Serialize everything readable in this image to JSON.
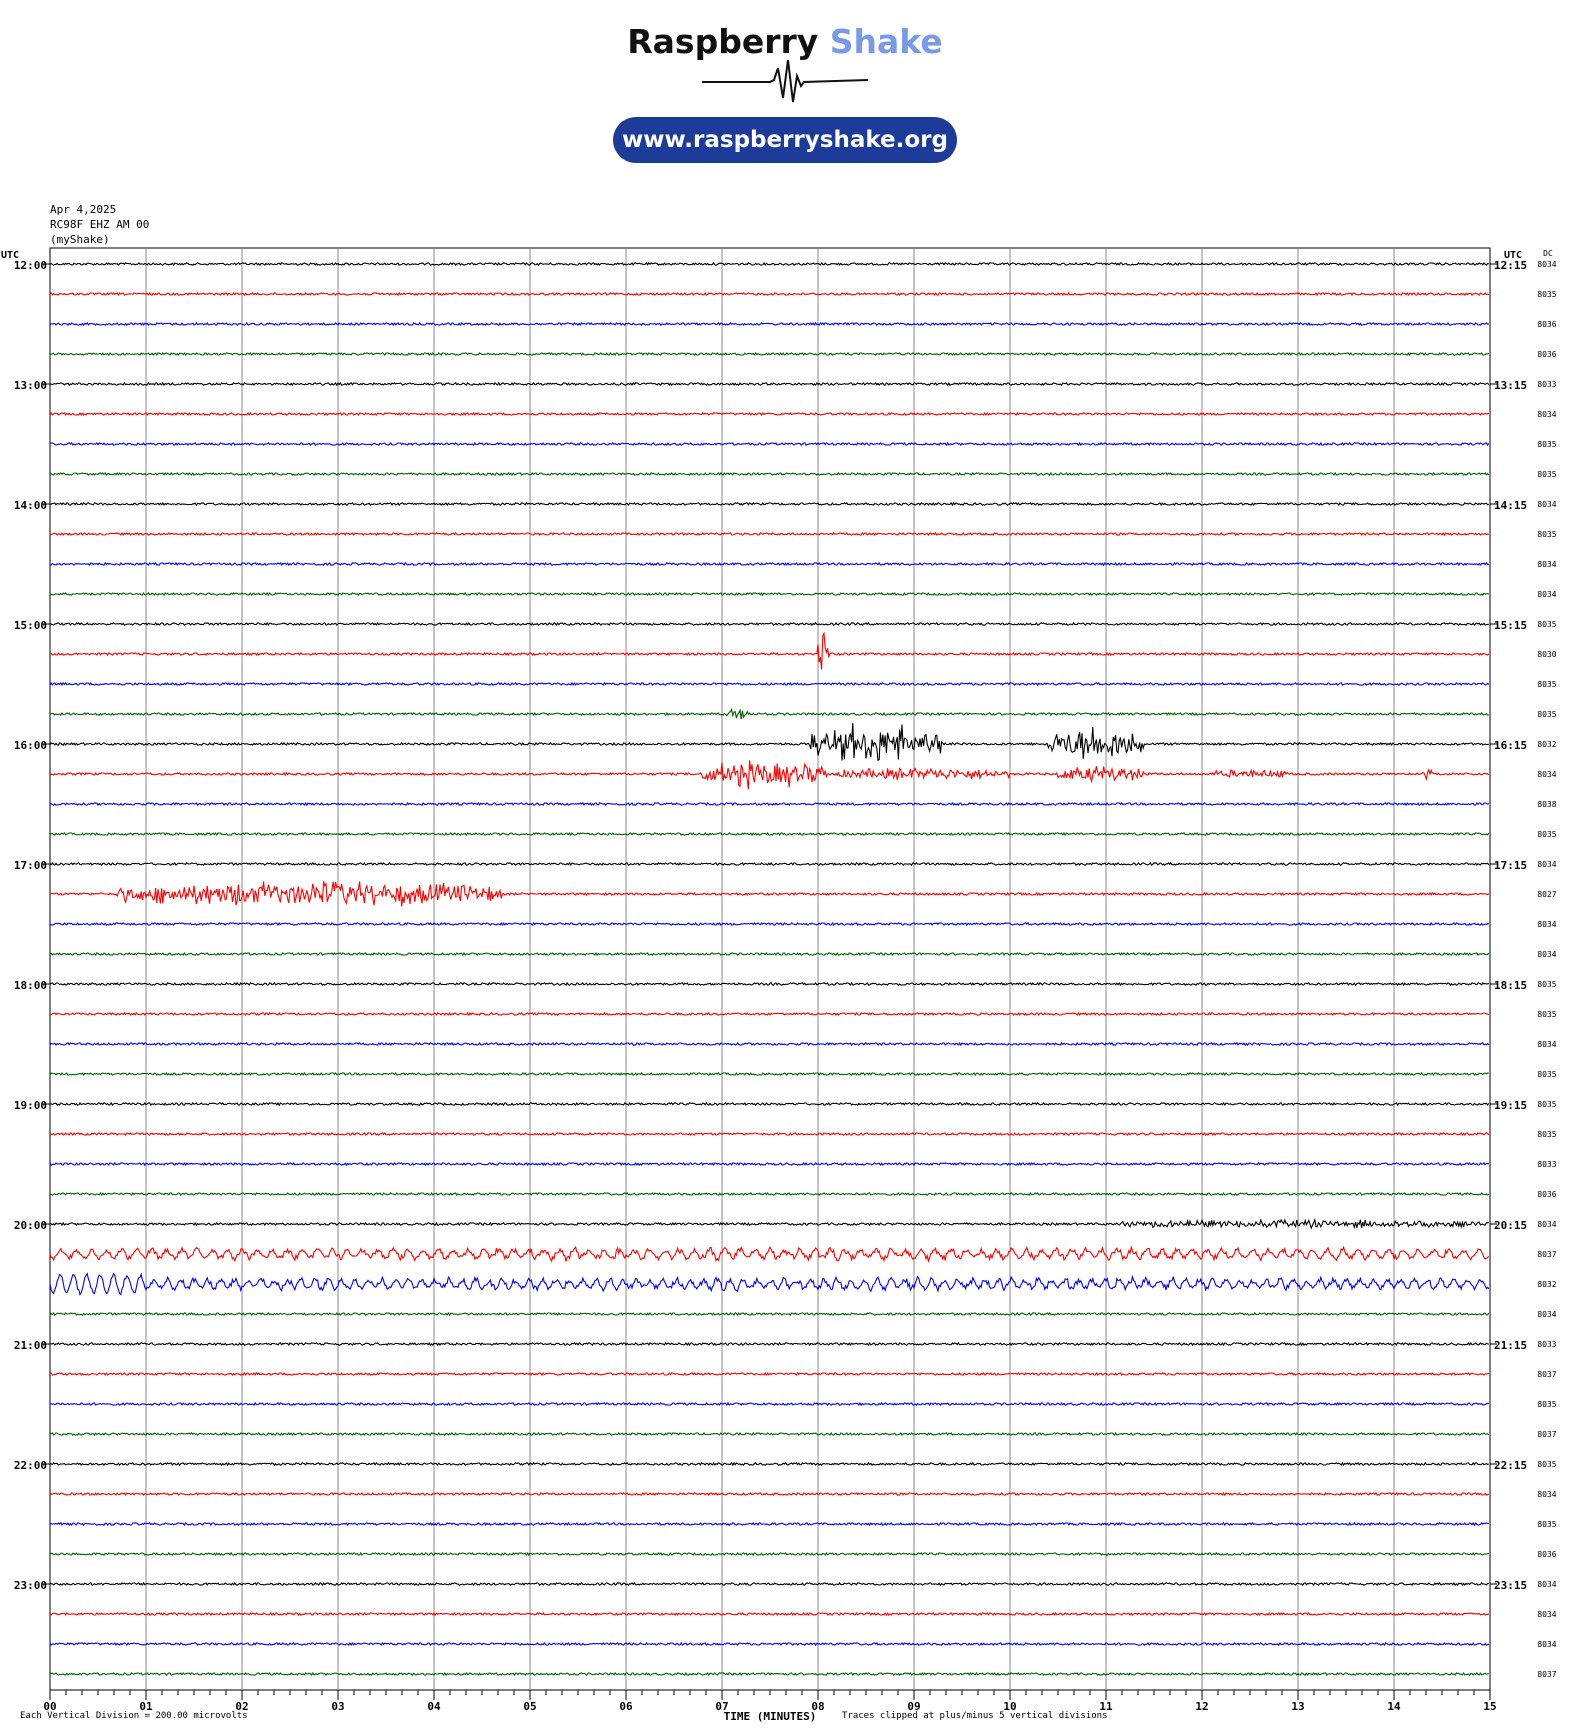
{
  "brand": {
    "name_part1": "Raspberry",
    "name_part2": "Shake",
    "website": "www.raspberryshake.org",
    "colors": {
      "dark": "#111111",
      "light": "#7b9ae6",
      "pill": "#1d3c9a"
    }
  },
  "header": {
    "date": "Apr 4,2025",
    "station": "RC98F EHZ AM 00",
    "source": "(myShake)"
  },
  "chart_data": {
    "type": "line",
    "description_free": true,
    "left_axis_title": "UTC",
    "right_axis_title": "UTC",
    "right_column_title": "DC",
    "hour_labels_left": [
      "12:00",
      "13:00",
      "14:00",
      "15:00",
      "16:00",
      "17:00",
      "18:00",
      "19:00",
      "20:00",
      "21:00",
      "22:00",
      "23:00"
    ],
    "hour_labels_right": [
      "12:15",
      "13:15",
      "14:15",
      "15:15",
      "16:15",
      "17:15",
      "18:15",
      "19:15",
      "20:15",
      "21:15",
      "22:15",
      "23:15"
    ],
    "dc_offsets": [
      "8034",
      "8035",
      "8036",
      "8036",
      "8033",
      "8034",
      "8035",
      "8035",
      "8034",
      "8035",
      "8034",
      "8034",
      "8035",
      "8030",
      "8035",
      "8035",
      "8032",
      "8034",
      "8038",
      "8035",
      "8034",
      "8027",
      "8034",
      "8034",
      "8035",
      "8035",
      "8034",
      "8035",
      "8035",
      "8035",
      "8033",
      "8036",
      "8034",
      "8037",
      "8032",
      "8034",
      "8033",
      "8037",
      "8035",
      "8037",
      "8035",
      "8034",
      "8035",
      "8036",
      "8034",
      "8034",
      "8034",
      "8037"
    ],
    "trace_colors": [
      "#000000",
      "#ff0000",
      "#0000ff",
      "#006400"
    ],
    "x_ticks": [
      "00",
      "01",
      "02",
      "03",
      "04",
      "05",
      "06",
      "07",
      "08",
      "09",
      "10",
      "11",
      "12",
      "13",
      "14",
      "15"
    ],
    "xlim": [
      0,
      15
    ],
    "xlabel": "TIME (MINUTES)",
    "rows_per_hour": 4,
    "minutes_per_row": 15,
    "grid": true,
    "events": [
      {
        "row": 13,
        "start": 8.0,
        "end": 8.12,
        "amp": 3.2
      },
      {
        "row": 15,
        "start": 7.05,
        "end": 7.3,
        "amp": 0.6
      },
      {
        "row": 16,
        "start": 7.9,
        "end": 9.3,
        "amp": 2.2
      },
      {
        "row": 16,
        "start": 10.4,
        "end": 11.4,
        "amp": 2.0
      },
      {
        "row": 17,
        "start": 6.8,
        "end": 8.1,
        "amp": 1.5
      },
      {
        "row": 17,
        "start": 8.2,
        "end": 10.0,
        "amp": 0.6
      },
      {
        "row": 17,
        "start": 10.5,
        "end": 11.4,
        "amp": 0.9
      },
      {
        "row": 17,
        "start": 12.1,
        "end": 12.9,
        "amp": 0.4
      },
      {
        "row": 17,
        "start": 14.3,
        "end": 14.4,
        "amp": 0.5
      },
      {
        "row": 21,
        "start": 0.7,
        "end": 4.7,
        "amp": 1.4
      },
      {
        "row": 32,
        "start": 11.1,
        "end": 15.0,
        "amp": 0.35
      },
      {
        "row": 33,
        "start": 0.0,
        "end": 15.0,
        "amp": 0.3
      },
      {
        "row": 34,
        "start": 0.0,
        "end": 15.0,
        "amp": 0.28
      },
      {
        "row": 42,
        "start": 7.0,
        "end": 7.15,
        "amp": 0.15
      }
    ]
  },
  "footer": {
    "scale_note": "Each Vertical Division =  200.00 microvolts",
    "clip_note": "Traces clipped at plus/minus 5 vertical divisions"
  }
}
